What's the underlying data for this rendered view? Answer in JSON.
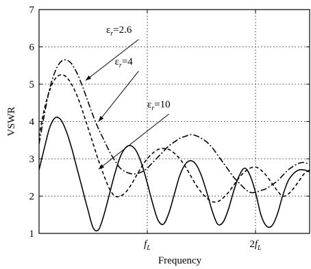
{
  "chart_data": {
    "type": "line",
    "title": "",
    "xlabel": "Frequency",
    "ylabel": "VSWR",
    "xlim": [
      0,
      2.5
    ],
    "ylim": [
      1,
      7
    ],
    "grid": true,
    "x_ticks": [
      {
        "x": 1,
        "base": "",
        "sub": "L",
        "italic_base": "f"
      },
      {
        "x": 2,
        "base": "2",
        "sub": "L",
        "italic_base": "f"
      }
    ],
    "y_ticks": [
      1,
      2,
      3,
      4,
      5,
      6,
      7
    ],
    "series": [
      {
        "name": "εr=2.6",
        "label_base": "ε",
        "label_sub": "r",
        "label_tail": "=2.6",
        "dash": "dashdot",
        "x": [
          0,
          0.05,
          0.1,
          0.15,
          0.2,
          0.25,
          0.3,
          0.35,
          0.4,
          0.45,
          0.5,
          0.55,
          0.6,
          0.65,
          0.7,
          0.75,
          0.8,
          0.85,
          0.9,
          0.95,
          1.0,
          1.05,
          1.1,
          1.15,
          1.2,
          1.25,
          1.3,
          1.35,
          1.4,
          1.45,
          1.5,
          1.55,
          1.6,
          1.65,
          1.7,
          1.75,
          1.8,
          1.85,
          1.9,
          1.95,
          2.0,
          2.05,
          2.1,
          2.15,
          2.2,
          2.25,
          2.3,
          2.35,
          2.4,
          2.45,
          2.5
        ],
        "y": [
          3.4,
          4.2,
          4.9,
          5.35,
          5.6,
          5.65,
          5.55,
          5.3,
          4.95,
          4.55,
          4.15,
          3.8,
          3.5,
          3.2,
          2.95,
          2.75,
          2.65,
          2.6,
          2.6,
          2.65,
          2.75,
          2.9,
          3.05,
          3.2,
          3.35,
          3.45,
          3.55,
          3.6,
          3.65,
          3.62,
          3.55,
          3.45,
          3.3,
          3.1,
          2.9,
          2.7,
          2.5,
          2.35,
          2.2,
          2.1,
          2.1,
          2.15,
          2.2,
          2.3,
          2.4,
          2.55,
          2.7,
          2.8,
          2.88,
          2.9,
          2.85
        ]
      },
      {
        "name": "εr=4",
        "label_base": "ε",
        "label_sub": "r",
        "label_tail": "=4",
        "dash": "dashed",
        "x": [
          0,
          0.05,
          0.1,
          0.15,
          0.2,
          0.25,
          0.3,
          0.35,
          0.4,
          0.45,
          0.5,
          0.55,
          0.6,
          0.65,
          0.7,
          0.75,
          0.8,
          0.85,
          0.9,
          0.95,
          1.0,
          1.05,
          1.1,
          1.15,
          1.2,
          1.25,
          1.3,
          1.35,
          1.4,
          1.45,
          1.5,
          1.55,
          1.6,
          1.65,
          1.7,
          1.75,
          1.8,
          1.85,
          1.9,
          1.95,
          2.0,
          2.05,
          2.1,
          2.15,
          2.2,
          2.25,
          2.3,
          2.35,
          2.4,
          2.45,
          2.5
        ],
        "y": [
          3.6,
          4.35,
          4.85,
          5.15,
          5.25,
          5.2,
          5.0,
          4.7,
          4.3,
          3.85,
          3.4,
          2.95,
          2.55,
          2.2,
          2.0,
          2.0,
          2.1,
          2.3,
          2.55,
          2.8,
          3.0,
          3.15,
          3.25,
          3.28,
          3.25,
          3.15,
          3.0,
          2.8,
          2.55,
          2.3,
          2.1,
          1.95,
          1.85,
          1.85,
          1.95,
          2.1,
          2.3,
          2.5,
          2.65,
          2.75,
          2.78,
          2.7,
          2.55,
          2.35,
          2.15,
          2.0,
          2.05,
          2.2,
          2.4,
          2.6,
          2.7
        ]
      },
      {
        "name": "εr=10",
        "label_base": "ε",
        "label_sub": "r",
        "label_tail": "=10",
        "dash": "solid",
        "x": [
          0,
          0.05,
          0.1,
          0.15,
          0.2,
          0.25,
          0.3,
          0.35,
          0.4,
          0.45,
          0.5,
          0.55,
          0.6,
          0.65,
          0.7,
          0.75,
          0.8,
          0.85,
          0.9,
          0.95,
          1.0,
          1.05,
          1.1,
          1.15,
          1.2,
          1.25,
          1.3,
          1.35,
          1.4,
          1.45,
          1.5,
          1.55,
          1.6,
          1.65,
          1.7,
          1.75,
          1.8,
          1.85,
          1.9,
          1.95,
          2.0,
          2.05,
          2.1,
          2.15,
          2.2,
          2.25,
          2.3,
          2.35,
          2.4,
          2.45,
          2.5
        ],
        "y": [
          2.7,
          3.3,
          3.85,
          4.1,
          4.05,
          3.75,
          3.3,
          2.75,
          2.2,
          1.65,
          1.15,
          1.1,
          1.5,
          2.05,
          2.6,
          3.05,
          3.3,
          3.35,
          3.2,
          2.85,
          2.35,
          1.8,
          1.35,
          1.25,
          1.55,
          2.05,
          2.55,
          2.85,
          2.95,
          2.85,
          2.55,
          2.1,
          1.6,
          1.25,
          1.3,
          1.65,
          2.15,
          2.55,
          2.75,
          2.55,
          2.1,
          1.5,
          1.2,
          1.2,
          1.5,
          2.0,
          2.4,
          2.6,
          2.7,
          2.7,
          2.65
        ]
      }
    ]
  }
}
